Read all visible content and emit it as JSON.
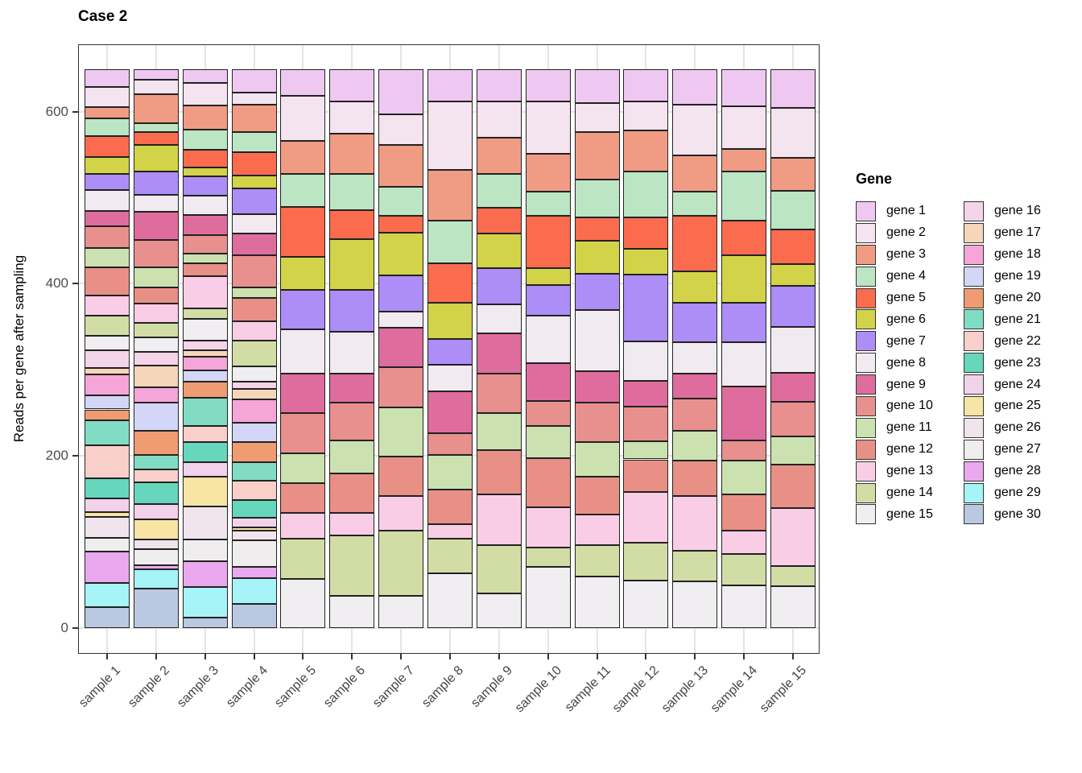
{
  "title": "Case 2",
  "y_axis": {
    "label": "Reads per gene after sampling",
    "major_ticks": [
      0,
      200,
      400,
      600
    ],
    "minor_gridlines": [
      100,
      300,
      500
    ]
  },
  "x_axis": {
    "label": ""
  },
  "legend": {
    "title": "Gene",
    "position": "right",
    "columns": 2
  },
  "chart_data": {
    "type": "bar",
    "stacked": true,
    "stack_order": "gene 1 on top, gene 30 at bottom",
    "grid": true,
    "panel_border": true,
    "total_per_sample": 649,
    "ylim": [
      0,
      678
    ],
    "categories": [
      "sample 1",
      "sample 2",
      "sample 3",
      "sample 4",
      "sample 5",
      "sample 6",
      "sample 7",
      "sample 8",
      "sample 9",
      "sample 10",
      "sample 11",
      "sample 12",
      "sample 13",
      "sample 14",
      "sample 15"
    ],
    "series": [
      {
        "name": "gene 1",
        "color": "#EFC8F2",
        "values": [
          20,
          12,
          16,
          27,
          31,
          37,
          52,
          37,
          37,
          37,
          39,
          37,
          41,
          43,
          45
        ]
      },
      {
        "name": "gene 2",
        "color": "#F4E4EF",
        "values": [
          24,
          17,
          26,
          14,
          52,
          38,
          36,
          80,
          42,
          61,
          34,
          34,
          59,
          49,
          58
        ]
      },
      {
        "name": "gene 3",
        "color": "#F09C84",
        "values": [
          13,
          33,
          28,
          32,
          38,
          46,
          48,
          59,
          42,
          44,
          55,
          48,
          42,
          27,
          38
        ]
      },
      {
        "name": "gene 4",
        "color": "#BCE5C4",
        "values": [
          20,
          11,
          23,
          23,
          39,
          42,
          34,
          49,
          40,
          28,
          44,
          53,
          28,
          57,
          45
        ]
      },
      {
        "name": "gene 5",
        "color": "#FB6C4E",
        "values": [
          25,
          15,
          21,
          27,
          58,
          34,
          20,
          46,
          30,
          61,
          27,
          36,
          65,
          40,
          40
        ]
      },
      {
        "name": "gene 6",
        "color": "#D2D348",
        "values": [
          19,
          31,
          10,
          15,
          38,
          59,
          49,
          42,
          40,
          19,
          38,
          30,
          36,
          55,
          25
        ]
      },
      {
        "name": "gene 7",
        "color": "#AD8DF6",
        "values": [
          19,
          27,
          23,
          30,
          46,
          49,
          42,
          30,
          42,
          36,
          42,
          78,
          46,
          46,
          48
        ]
      },
      {
        "name": "gene 8",
        "color": "#F2EAF1",
        "values": [
          24,
          19,
          22,
          23,
          51,
          48,
          19,
          31,
          34,
          55,
          72,
          46,
          36,
          51,
          53
        ]
      },
      {
        "name": "gene 9",
        "color": "#DE6D9D",
        "values": [
          18,
          33,
          23,
          25,
          46,
          34,
          46,
          49,
          46,
          44,
          36,
          30,
          29,
          63,
          34
        ]
      },
      {
        "name": "gene 10",
        "color": "#E8908E",
        "values": [
          25,
          32,
          22,
          37,
          47,
          44,
          47,
          25,
          46,
          29,
          46,
          40,
          38,
          23,
          40
        ]
      },
      {
        "name": "gene 11",
        "color": "#CBE2B0",
        "values": [
          23,
          23,
          11,
          12,
          35,
          38,
          57,
          40,
          43,
          38,
          40,
          21,
          34,
          40,
          33
        ]
      },
      {
        "name": "gene 12",
        "color": "#E89086",
        "values": [
          33,
          19,
          15,
          28,
          34,
          46,
          46,
          40,
          52,
          57,
          44,
          38,
          42,
          42,
          51
        ]
      },
      {
        "name": "gene 13",
        "color": "#FACDE6",
        "values": [
          23,
          22,
          38,
          22,
          30,
          26,
          40,
          17,
          59,
          46,
          36,
          59,
          63,
          27,
          67
        ]
      },
      {
        "name": "gene 14",
        "color": "#D2DDA6",
        "values": [
          23,
          17,
          12,
          30,
          47,
          71,
          76,
          40,
          56,
          23,
          36,
          44,
          36,
          36,
          23
        ]
      },
      {
        "name": "gene 15",
        "color": "#F0EEF0",
        "values": [
          17,
          17,
          25,
          18,
          57,
          37,
          37,
          64,
          40,
          71,
          60,
          55,
          54,
          50,
          49
        ]
      },
      {
        "name": "gene 16",
        "color": "#F3D4E8",
        "values": [
          21,
          16,
          11,
          8,
          0,
          0,
          0,
          0,
          0,
          0,
          0,
          0,
          0,
          0,
          0
        ]
      },
      {
        "name": "gene 17",
        "color": "#F6D6B9",
        "values": [
          7,
          25,
          8,
          12,
          0,
          0,
          0,
          0,
          0,
          0,
          0,
          0,
          0,
          0,
          0
        ]
      },
      {
        "name": "gene 18",
        "color": "#F5A5D8",
        "values": [
          25,
          18,
          16,
          27,
          0,
          0,
          0,
          0,
          0,
          0,
          0,
          0,
          0,
          0,
          0
        ]
      },
      {
        "name": "gene 19",
        "color": "#D4D6F7",
        "values": [
          16,
          33,
          13,
          23,
          0,
          0,
          0,
          0,
          0,
          0,
          0,
          0,
          0,
          0,
          0
        ]
      },
      {
        "name": "gene 20",
        "color": "#F09C73",
        "values": [
          13,
          28,
          18,
          23,
          0,
          0,
          0,
          0,
          0,
          0,
          0,
          0,
          0,
          0,
          0
        ]
      },
      {
        "name": "gene 21",
        "color": "#82DCC4",
        "values": [
          29,
          17,
          33,
          22,
          0,
          0,
          0,
          0,
          0,
          0,
          0,
          0,
          0,
          0,
          0
        ]
      },
      {
        "name": "gene 22",
        "color": "#F9CFCA",
        "values": [
          38,
          15,
          19,
          22,
          0,
          0,
          0,
          0,
          0,
          0,
          0,
          0,
          0,
          0,
          0
        ]
      },
      {
        "name": "gene 23",
        "color": "#66D6BC",
        "values": [
          23,
          25,
          23,
          21,
          0,
          0,
          0,
          0,
          0,
          0,
          0,
          0,
          0,
          0,
          0
        ]
      },
      {
        "name": "gene 24",
        "color": "#F2D1EA",
        "values": [
          16,
          18,
          17,
          11,
          0,
          0,
          0,
          0,
          0,
          0,
          0,
          0,
          0,
          0,
          0
        ]
      },
      {
        "name": "gene 25",
        "color": "#F8E4A4",
        "values": [
          6,
          23,
          35,
          4,
          0,
          0,
          0,
          0,
          0,
          0,
          0,
          0,
          0,
          0,
          0
        ]
      },
      {
        "name": "gene 26",
        "color": "#F0E5ED",
        "values": [
          24,
          11,
          38,
          11,
          0,
          0,
          0,
          0,
          0,
          0,
          0,
          0,
          0,
          0,
          0
        ]
      },
      {
        "name": "gene 27",
        "color": "#EFEDEE",
        "values": [
          16,
          19,
          25,
          31,
          0,
          0,
          0,
          0,
          0,
          0,
          0,
          0,
          0,
          0,
          0
        ]
      },
      {
        "name": "gene 28",
        "color": "#EAA9EE",
        "values": [
          37,
          5,
          30,
          13,
          0,
          0,
          0,
          0,
          0,
          0,
          0,
          0,
          0,
          0,
          0
        ]
      },
      {
        "name": "gene 29",
        "color": "#A6F3F8",
        "values": [
          28,
          22,
          36,
          30,
          0,
          0,
          0,
          0,
          0,
          0,
          0,
          0,
          0,
          0,
          0
        ]
      },
      {
        "name": "gene 30",
        "color": "#BAC8E2",
        "values": [
          24,
          46,
          12,
          28,
          0,
          0,
          0,
          0,
          0,
          0,
          0,
          0,
          0,
          0,
          0
        ]
      }
    ]
  }
}
